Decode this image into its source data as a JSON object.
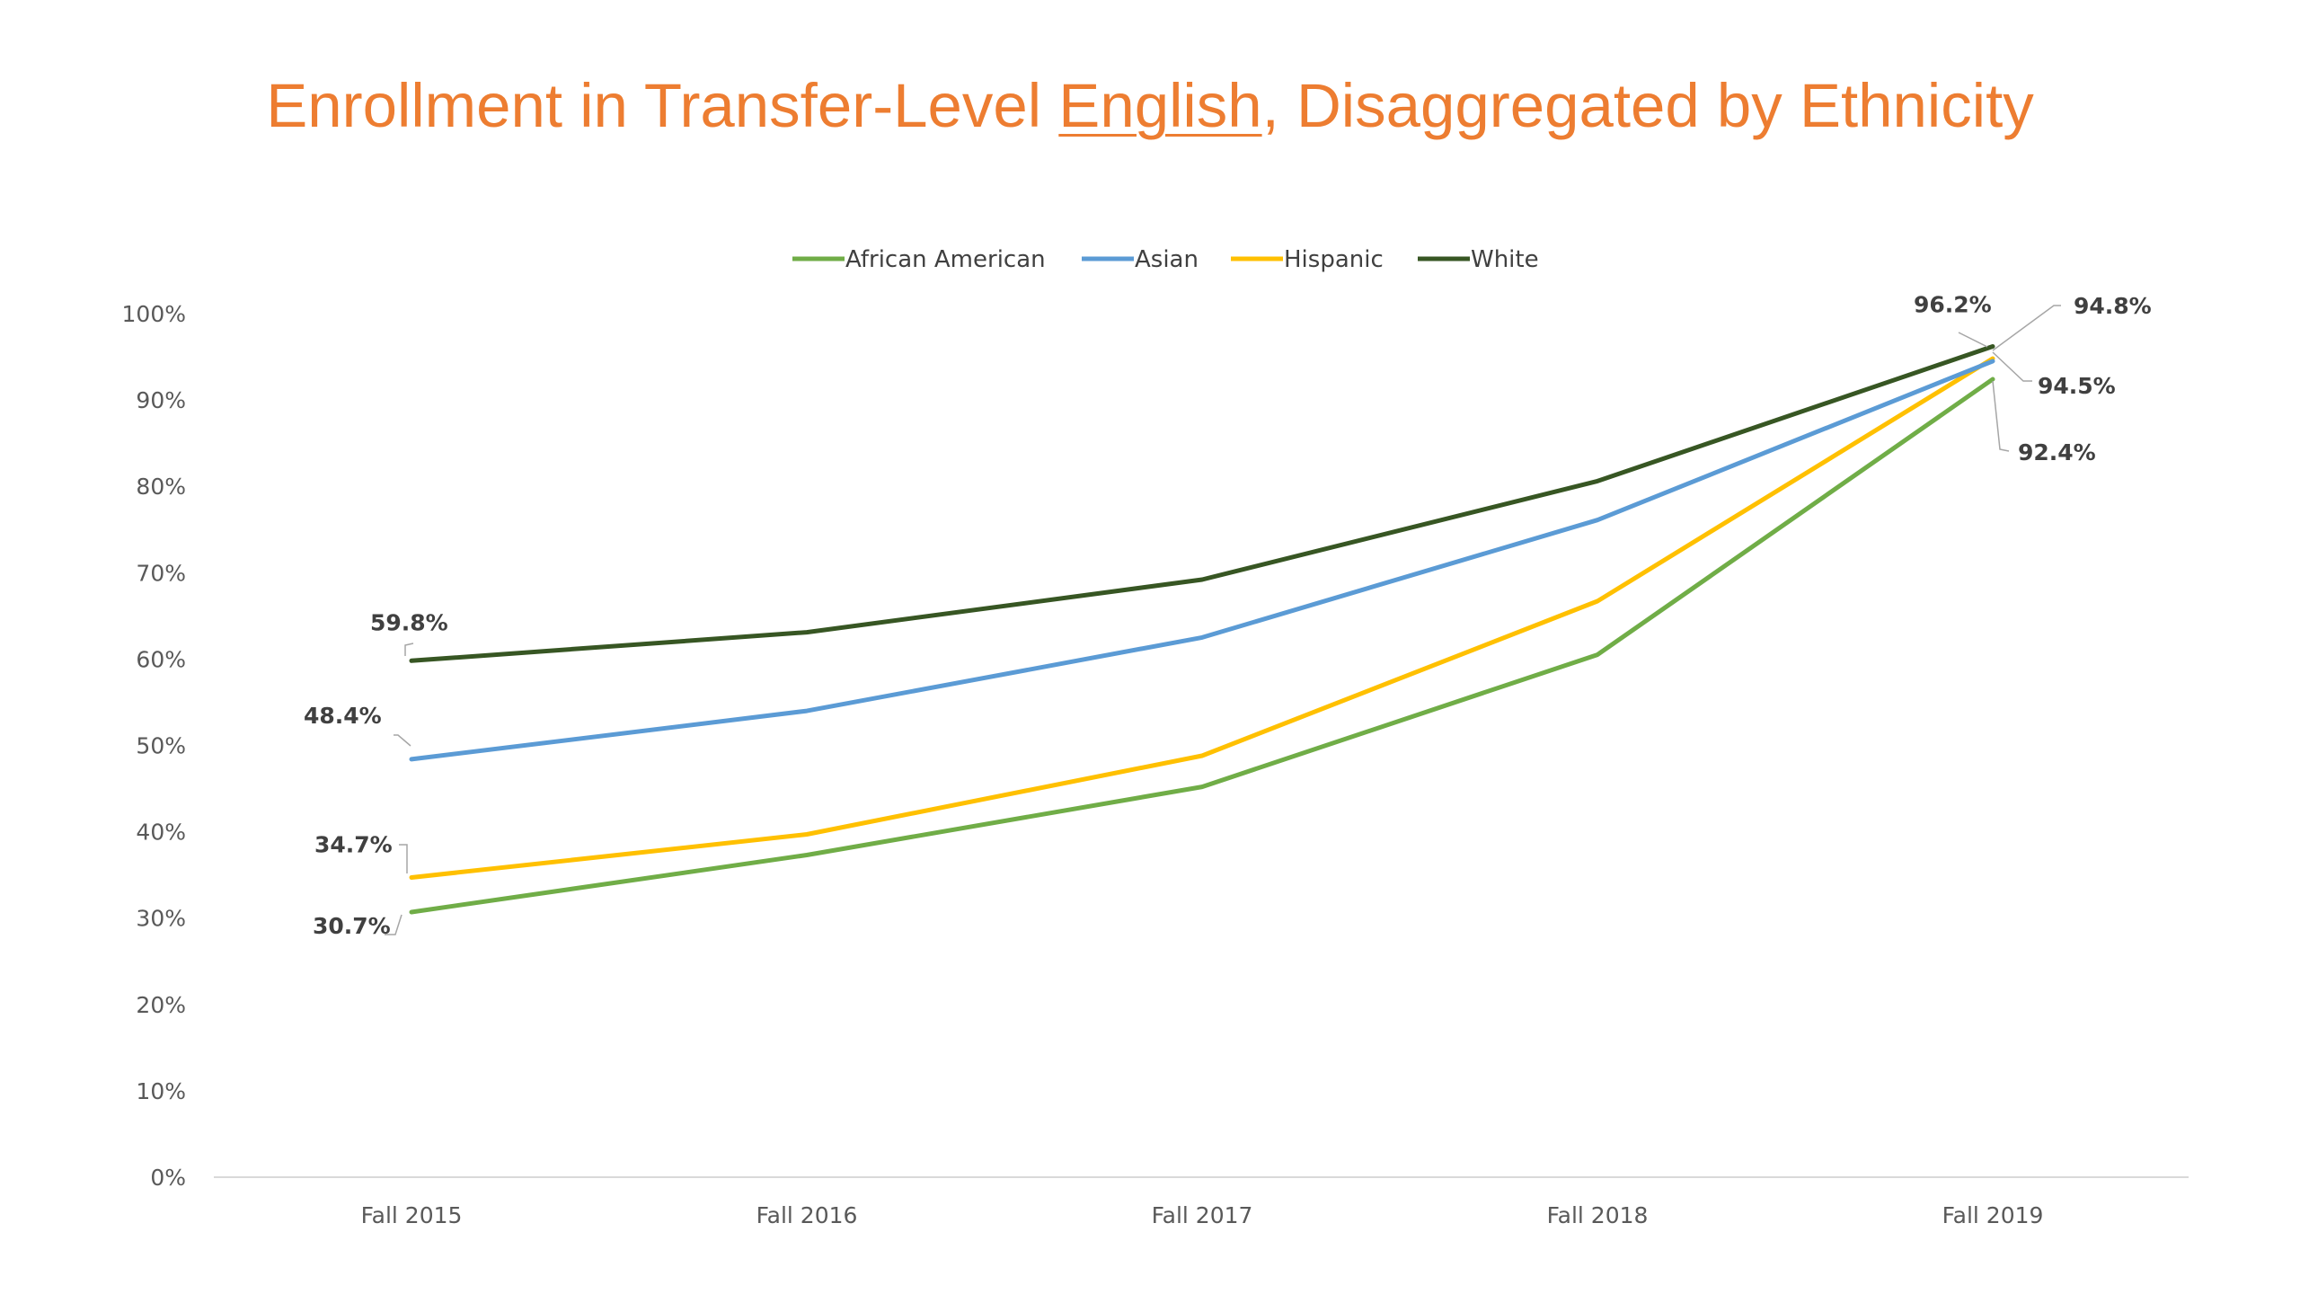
{
  "title": {
    "pre": "Enrollment in Transfer-Level ",
    "underlined": "English",
    "post": ", Disaggregated by Ethnicity"
  },
  "chart_data": {
    "type": "line",
    "categories": [
      "Fall 2015",
      "Fall 2016",
      "Fall 2017",
      "Fall 2018",
      "Fall 2019"
    ],
    "ylim": [
      0,
      100
    ],
    "yticks": [
      "0%",
      "10%",
      "20%",
      "30%",
      "40%",
      "50%",
      "60%",
      "70%",
      "80%",
      "90%",
      "100%"
    ],
    "grid": false,
    "legend_position": "top",
    "series": [
      {
        "name": "African American",
        "color": "#70ad47",
        "values": [
          30.7,
          37.3,
          45.2,
          60.5,
          92.4
        ]
      },
      {
        "name": "Asian",
        "color": "#5b9bd5",
        "values": [
          48.4,
          54.0,
          62.5,
          76.1,
          94.5
        ]
      },
      {
        "name": "Hispanic",
        "color": "#ffc000",
        "values": [
          34.7,
          39.7,
          48.8,
          66.7,
          94.8
        ]
      },
      {
        "name": "White",
        "color": "#375623",
        "values": [
          59.8,
          63.1,
          69.2,
          80.6,
          96.2
        ]
      }
    ],
    "data_labels": [
      {
        "series": 0,
        "index": 0,
        "text": "30.7%"
      },
      {
        "series": 1,
        "index": 0,
        "text": "48.4%"
      },
      {
        "series": 2,
        "index": 0,
        "text": "34.7%"
      },
      {
        "series": 3,
        "index": 0,
        "text": "59.8%"
      },
      {
        "series": 0,
        "index": 4,
        "text": "92.4%"
      },
      {
        "series": 1,
        "index": 4,
        "text": "94.5%"
      },
      {
        "series": 2,
        "index": 4,
        "text": "94.8%"
      },
      {
        "series": 3,
        "index": 4,
        "text": "96.2%"
      }
    ]
  }
}
